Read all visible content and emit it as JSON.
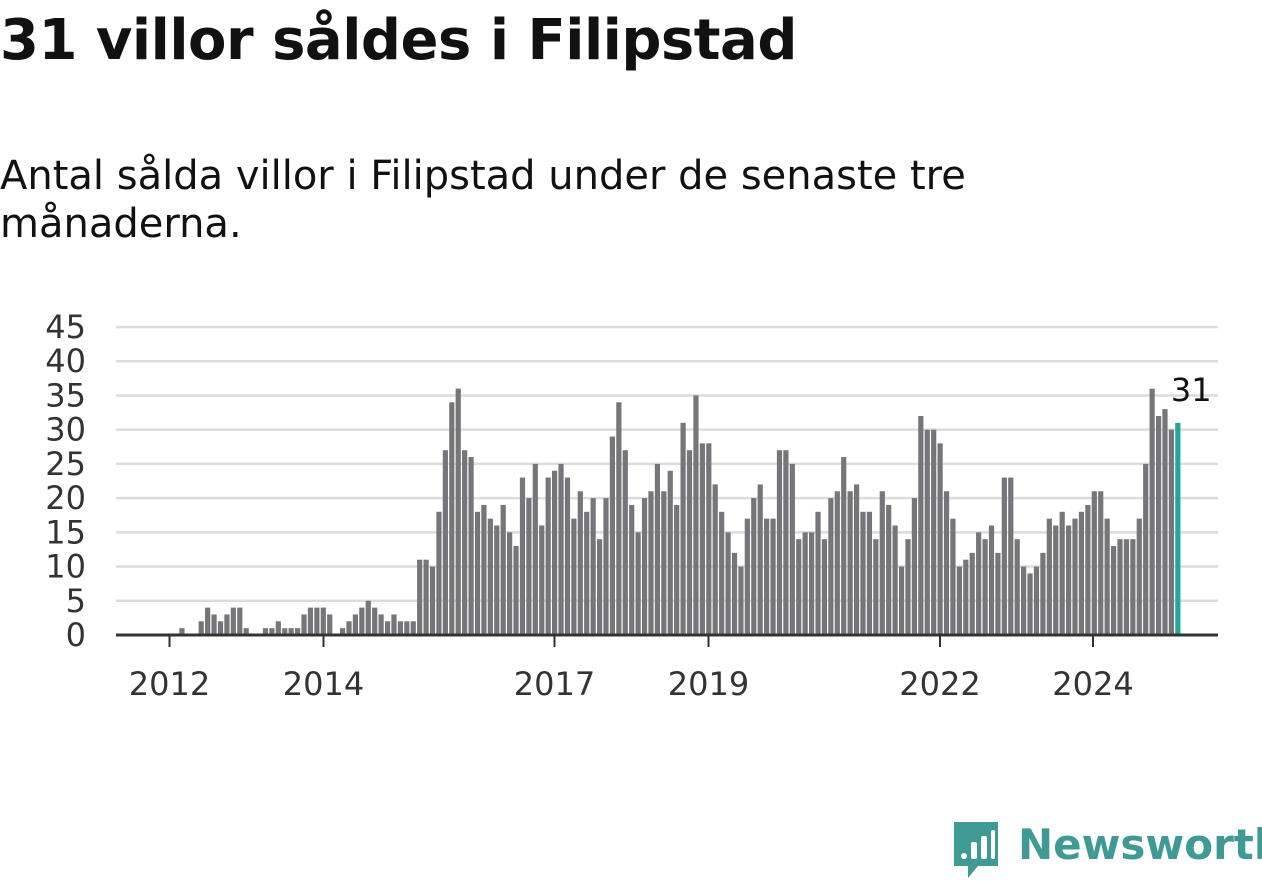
{
  "title": "31 villor såldes i Filipstad",
  "subtitle": "Antal sålda villor i Filipstad under de senaste tre månaderna.",
  "brand": {
    "name": "Newsworthy",
    "color": "#3e9a93"
  },
  "chart_data": {
    "type": "bar",
    "ylim": [
      0,
      45
    ],
    "y_ticks": [
      0,
      5,
      10,
      15,
      20,
      25,
      30,
      35,
      40,
      45
    ],
    "grid": true,
    "x_tick_labels": [
      "2012",
      "2014",
      "2017",
      "2019",
      "2022",
      "2024"
    ],
    "bar_color": "#767579",
    "highlight_color": "#26a59a",
    "highlight_label": "31",
    "values": [
      0,
      0,
      1,
      0,
      0,
      2,
      4,
      3,
      2,
      3,
      4,
      4,
      1,
      0,
      0,
      1,
      1,
      2,
      1,
      1,
      1,
      3,
      4,
      4,
      4,
      3,
      0,
      1,
      2,
      3,
      4,
      5,
      4,
      3,
      2,
      3,
      2,
      2,
      2,
      11,
      11,
      10,
      18,
      27,
      34,
      36,
      27,
      26,
      18,
      19,
      17,
      16,
      19,
      15,
      13,
      23,
      20,
      25,
      16,
      23,
      24,
      25,
      23,
      17,
      21,
      18,
      20,
      14,
      20,
      29,
      34,
      27,
      19,
      15,
      20,
      21,
      25,
      21,
      24,
      19,
      31,
      27,
      35,
      28,
      28,
      22,
      18,
      15,
      12,
      10,
      17,
      20,
      22,
      17,
      17,
      27,
      27,
      25,
      14,
      15,
      15,
      18,
      14,
      20,
      21,
      26,
      21,
      22,
      18,
      18,
      14,
      21,
      19,
      16,
      10,
      14,
      20,
      32,
      30,
      30,
      28,
      21,
      17,
      10,
      11,
      12,
      15,
      14,
      16,
      12,
      23,
      23,
      14,
      10,
      9,
      10,
      12,
      17,
      16,
      18,
      16,
      17,
      18,
      19,
      21,
      21,
      17,
      13,
      14,
      14,
      14,
      17,
      25,
      36,
      32,
      33,
      30,
      31
    ]
  }
}
